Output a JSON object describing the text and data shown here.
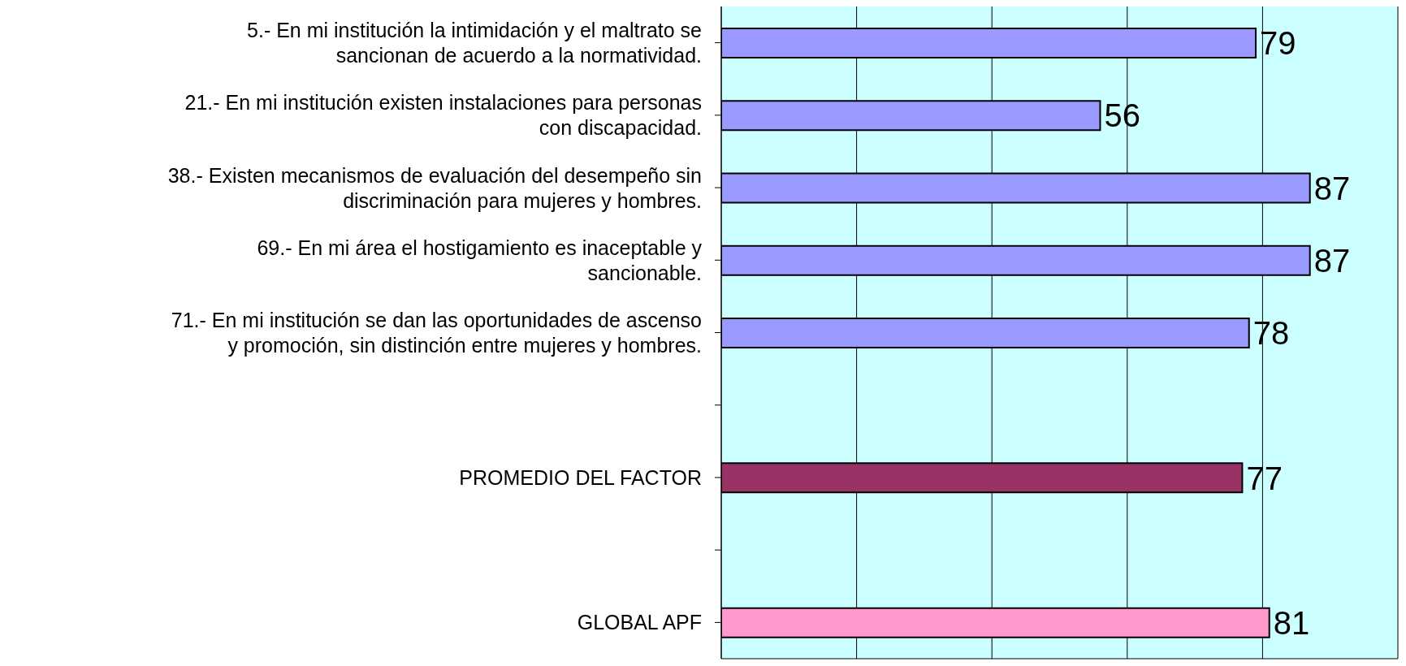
{
  "chart_data": {
    "type": "bar",
    "orientation": "horizontal",
    "categories": [
      "5.- En mi institución la intimidación y el maltrato se sancionan de acuerdo a la normatividad.",
      "21.- En mi institución existen instalaciones para personas con discapacidad.",
      "38.- Existen mecanismos de evaluación del desempeño sin discriminación para mujeres y hombres.",
      "69.- En mi área el hostigamiento es inaceptable y sancionable.",
      "71.- En mi institución se dan las oportunidades de ascenso y promoción, sin distinción entre mujeres y hombres.",
      null,
      "PROMEDIO DEL FACTOR",
      null,
      "GLOBAL APF"
    ],
    "values": [
      79,
      56,
      87,
      87,
      78,
      null,
      77,
      null,
      81
    ],
    "colors": [
      "#9999ff",
      "#9999ff",
      "#9999ff",
      "#9999ff",
      "#9999ff",
      "#9999ff",
      "#993366",
      "#9999ff",
      "#ff99cc"
    ],
    "xlim": [
      0,
      100
    ],
    "xticks": [
      {
        "value": 0,
        "label": null
      },
      {
        "value": 20,
        "label": null
      },
      {
        "value": 40,
        "label": null
      },
      {
        "value": 60,
        "label": null
      },
      {
        "value": 80,
        "label": null
      },
      {
        "value": 100,
        "label": null
      }
    ],
    "grid": "x",
    "tick_labels": false,
    "data_labels": true
  }
}
